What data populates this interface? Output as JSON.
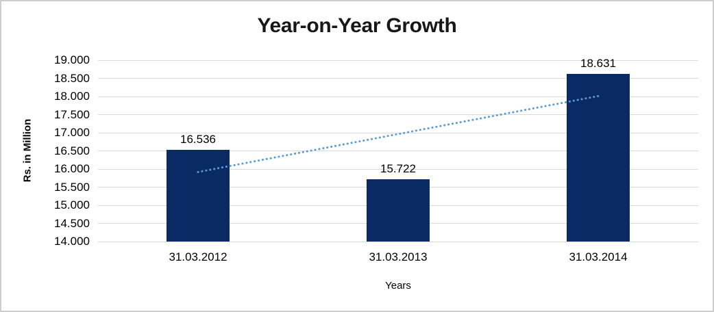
{
  "chart_data": {
    "type": "bar",
    "title": "Year-on-Year Growth",
    "xlabel": "Years",
    "ylabel": "Rs. in Million",
    "categories": [
      "31.03.2012",
      "31.03.2013",
      "31.03.2014"
    ],
    "values": [
      16.536,
      15.722,
      18.631
    ],
    "data_labels": [
      "16.536",
      "15.722",
      "18.631"
    ],
    "ylim": [
      14.0,
      19.0
    ],
    "ytick_step": 0.5,
    "ytick_labels": [
      "19.000",
      "18.500",
      "18.000",
      "17.500",
      "17.000",
      "16.500",
      "16.000",
      "15.500",
      "15.000",
      "14.500",
      "14.000"
    ],
    "grid": true,
    "legend_position": "none",
    "trendline": {
      "type": "linear",
      "style": "dotted",
      "start_category_index": 0,
      "end_category_index": 2,
      "start_value": 15.916,
      "end_value": 18.011
    },
    "colors": {
      "bar": "#0A2A63",
      "trendline": "#5B9BD5",
      "gridline": "#D9D9D9",
      "axis_line": "#D9D9D9",
      "text": "#000000",
      "title_text": "#171717",
      "border": "#CDCDCD",
      "background": "#FFFFFF"
    }
  }
}
